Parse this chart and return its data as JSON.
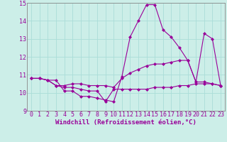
{
  "xlabel": "Windchill (Refroidissement éolien,°C)",
  "ylabel": "",
  "background_color": "#cceee8",
  "grid_color": "#aaddd8",
  "line_color": "#990099",
  "xlim": [
    -0.5,
    23.5
  ],
  "ylim": [
    9,
    15
  ],
  "xticks": [
    0,
    1,
    2,
    3,
    4,
    5,
    6,
    7,
    8,
    9,
    10,
    11,
    12,
    13,
    14,
    15,
    16,
    17,
    18,
    19,
    20,
    21,
    22,
    23
  ],
  "yticks": [
    9,
    10,
    11,
    12,
    13,
    14,
    15
  ],
  "series": [
    [
      10.8,
      10.8,
      10.7,
      10.7,
      10.1,
      10.1,
      9.8,
      9.8,
      9.7,
      9.6,
      9.5,
      10.9,
      13.1,
      14.0,
      14.9,
      14.9,
      13.5,
      13.1,
      12.5,
      11.8,
      10.6,
      13.3,
      13.0,
      10.4
    ],
    [
      10.8,
      10.8,
      10.7,
      10.4,
      10.4,
      10.5,
      10.5,
      10.4,
      10.4,
      10.4,
      10.3,
      10.8,
      11.1,
      11.3,
      11.5,
      11.6,
      11.6,
      11.7,
      11.8,
      11.8,
      10.6,
      10.6,
      10.5,
      10.4
    ],
    [
      10.8,
      10.8,
      10.7,
      10.4,
      10.3,
      10.3,
      10.2,
      10.1,
      10.1,
      9.5,
      10.2,
      10.2,
      10.2,
      10.2,
      10.2,
      10.3,
      10.3,
      10.3,
      10.4,
      10.4,
      10.5,
      10.5,
      10.5,
      10.4
    ]
  ],
  "marker": "D",
  "markersize": 2.0,
  "linewidth": 0.8,
  "tick_fontsize": 6,
  "xlabel_fontsize": 6.5
}
